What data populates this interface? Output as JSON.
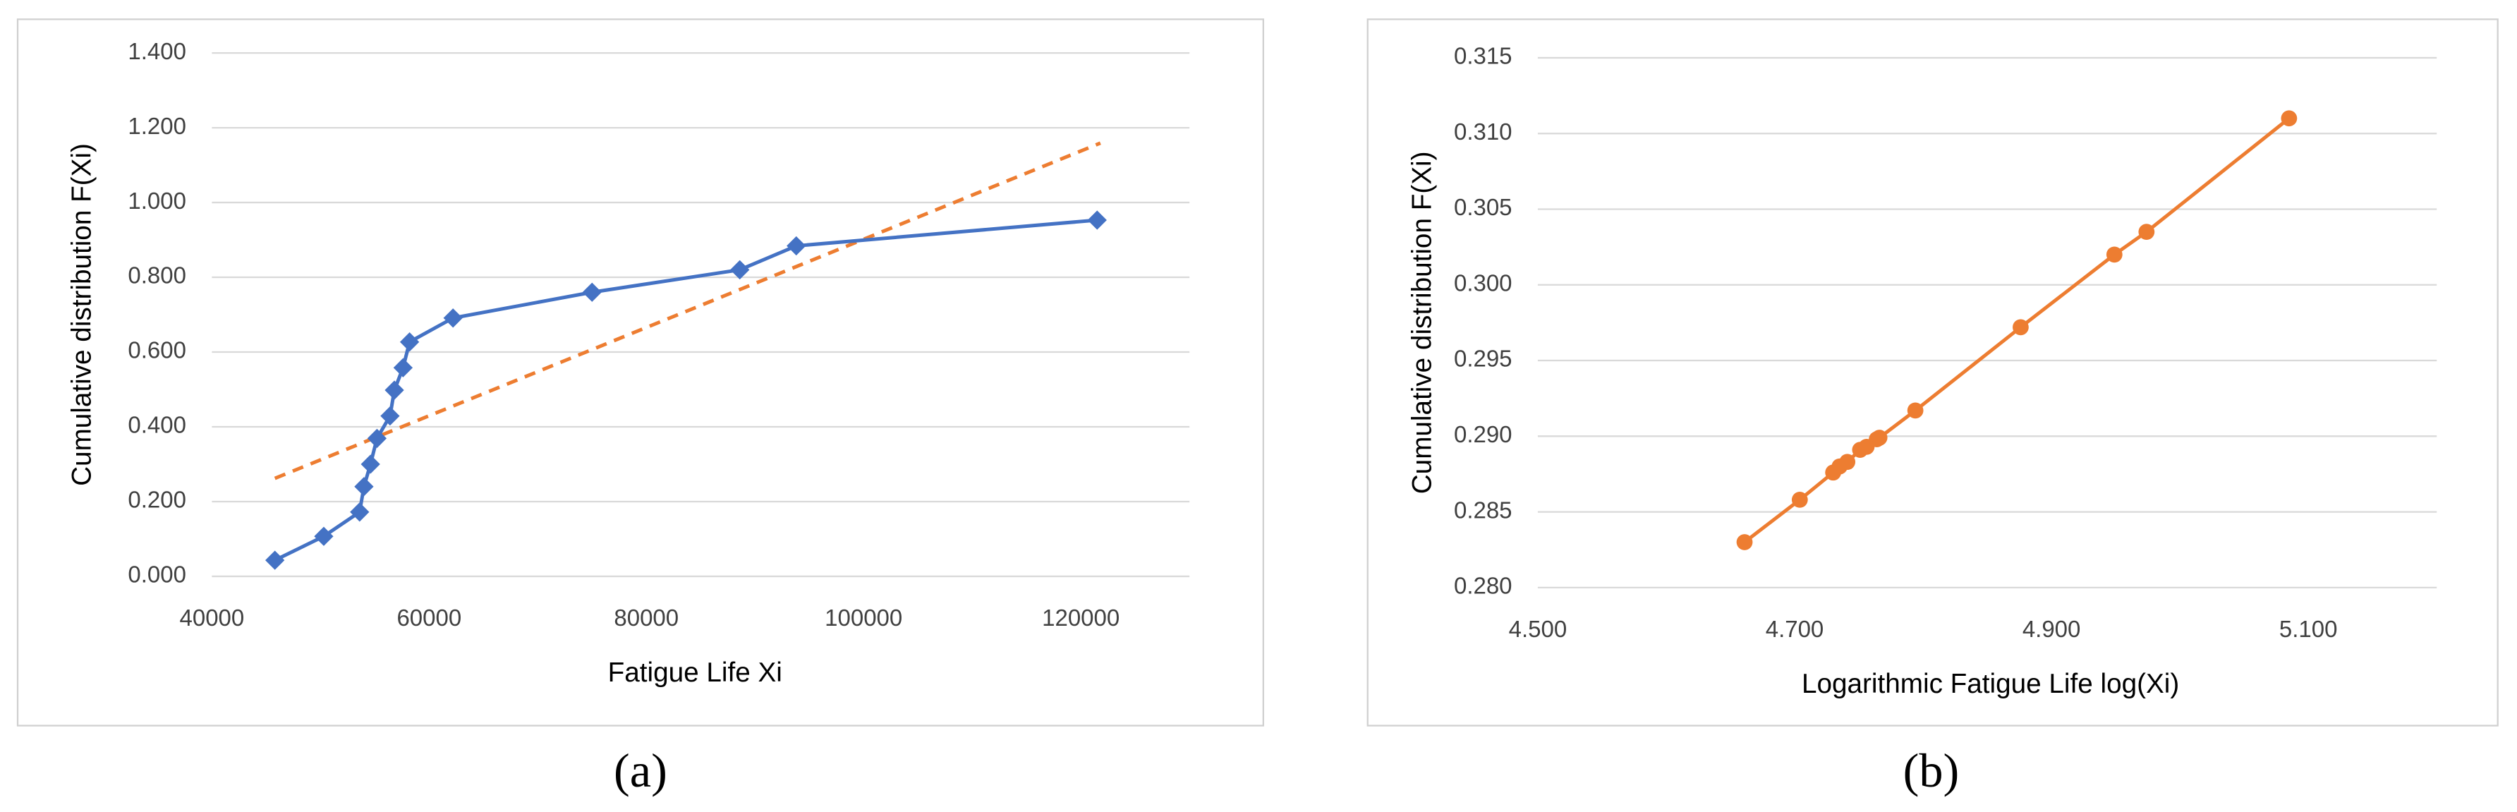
{
  "chart_data": [
    {
      "type": "line",
      "panel_label": "(a)",
      "x_label": "Fatigue Life Xi",
      "y_label": "Cumulative distribution F(Xi)",
      "x": [
        45800,
        50300,
        53600,
        54000,
        54600,
        55200,
        56400,
        56800,
        57600,
        58200,
        62200,
        75000,
        88600,
        93800,
        121500
      ],
      "series": [
        {
          "color": "#4472c4",
          "marker": "diamond",
          "values": [
            0.043,
            0.107,
            0.172,
            0.24,
            0.3,
            0.369,
            0.429,
            0.498,
            0.558,
            0.627,
            0.691,
            0.76,
            0.82,
            0.884,
            0.953
          ]
        }
      ],
      "trendline": {
        "color": "#ed7d31",
        "dashed": true,
        "x": [
          45800,
          121800
        ],
        "values": [
          0.262,
          1.159
        ]
      },
      "xlim": [
        40000,
        130000
      ],
      "xticks": [
        40000,
        60000,
        80000,
        100000,
        120000
      ],
      "ylim": [
        0,
        1.4
      ],
      "yticks": [
        {
          "value": 0,
          "label": "0.000"
        },
        {
          "value": 0.2,
          "label": "0.200"
        },
        {
          "value": 0.4,
          "label": "0.400"
        },
        {
          "value": 0.6,
          "label": "0.600"
        },
        {
          "value": 0.8,
          "label": "0.800"
        },
        {
          "value": 1.0,
          "label": "1.000"
        },
        {
          "value": 1.2,
          "label": "1.200"
        },
        {
          "value": 1.4,
          "label": "1.400"
        }
      ],
      "grid": true
    },
    {
      "type": "line",
      "panel_label": "(b)",
      "x_label": "Logarithmic Fatigue Life  log(Xi)",
      "y_label": "Cumulative distribution F(Xi)",
      "x": [
        4.661,
        4.704,
        4.73,
        4.735,
        4.741,
        4.751,
        4.756,
        4.764,
        4.766,
        4.794,
        4.876,
        4.949,
        4.974,
        5.085
      ],
      "series": [
        {
          "color": "#ed7d31",
          "marker": "circle",
          "values": [
            0.283,
            0.2858,
            0.2876,
            0.288,
            0.2883,
            0.2891,
            0.2893,
            0.2898,
            0.2899,
            0.2917,
            0.2972,
            0.302,
            0.3035,
            0.311
          ]
        }
      ],
      "xlim": [
        4.5,
        5.2
      ],
      "xticks": [
        {
          "value": 4.5,
          "label": "4.500"
        },
        {
          "value": 4.7,
          "label": "4.700"
        },
        {
          "value": 4.9,
          "label": "4.900"
        },
        {
          "value": 5.1,
          "label": "5.100"
        }
      ],
      "ylim": [
        0.28,
        0.315
      ],
      "yticks": [
        {
          "value": 0.28,
          "label": "0.280"
        },
        {
          "value": 0.285,
          "label": "0.285"
        },
        {
          "value": 0.29,
          "label": "0.290"
        },
        {
          "value": 0.295,
          "label": "0.295"
        },
        {
          "value": 0.3,
          "label": "0.300"
        },
        {
          "value": 0.305,
          "label": "0.305"
        },
        {
          "value": 0.31,
          "label": "0.310"
        },
        {
          "value": 0.315,
          "label": "0.315"
        }
      ],
      "grid": true
    }
  ]
}
